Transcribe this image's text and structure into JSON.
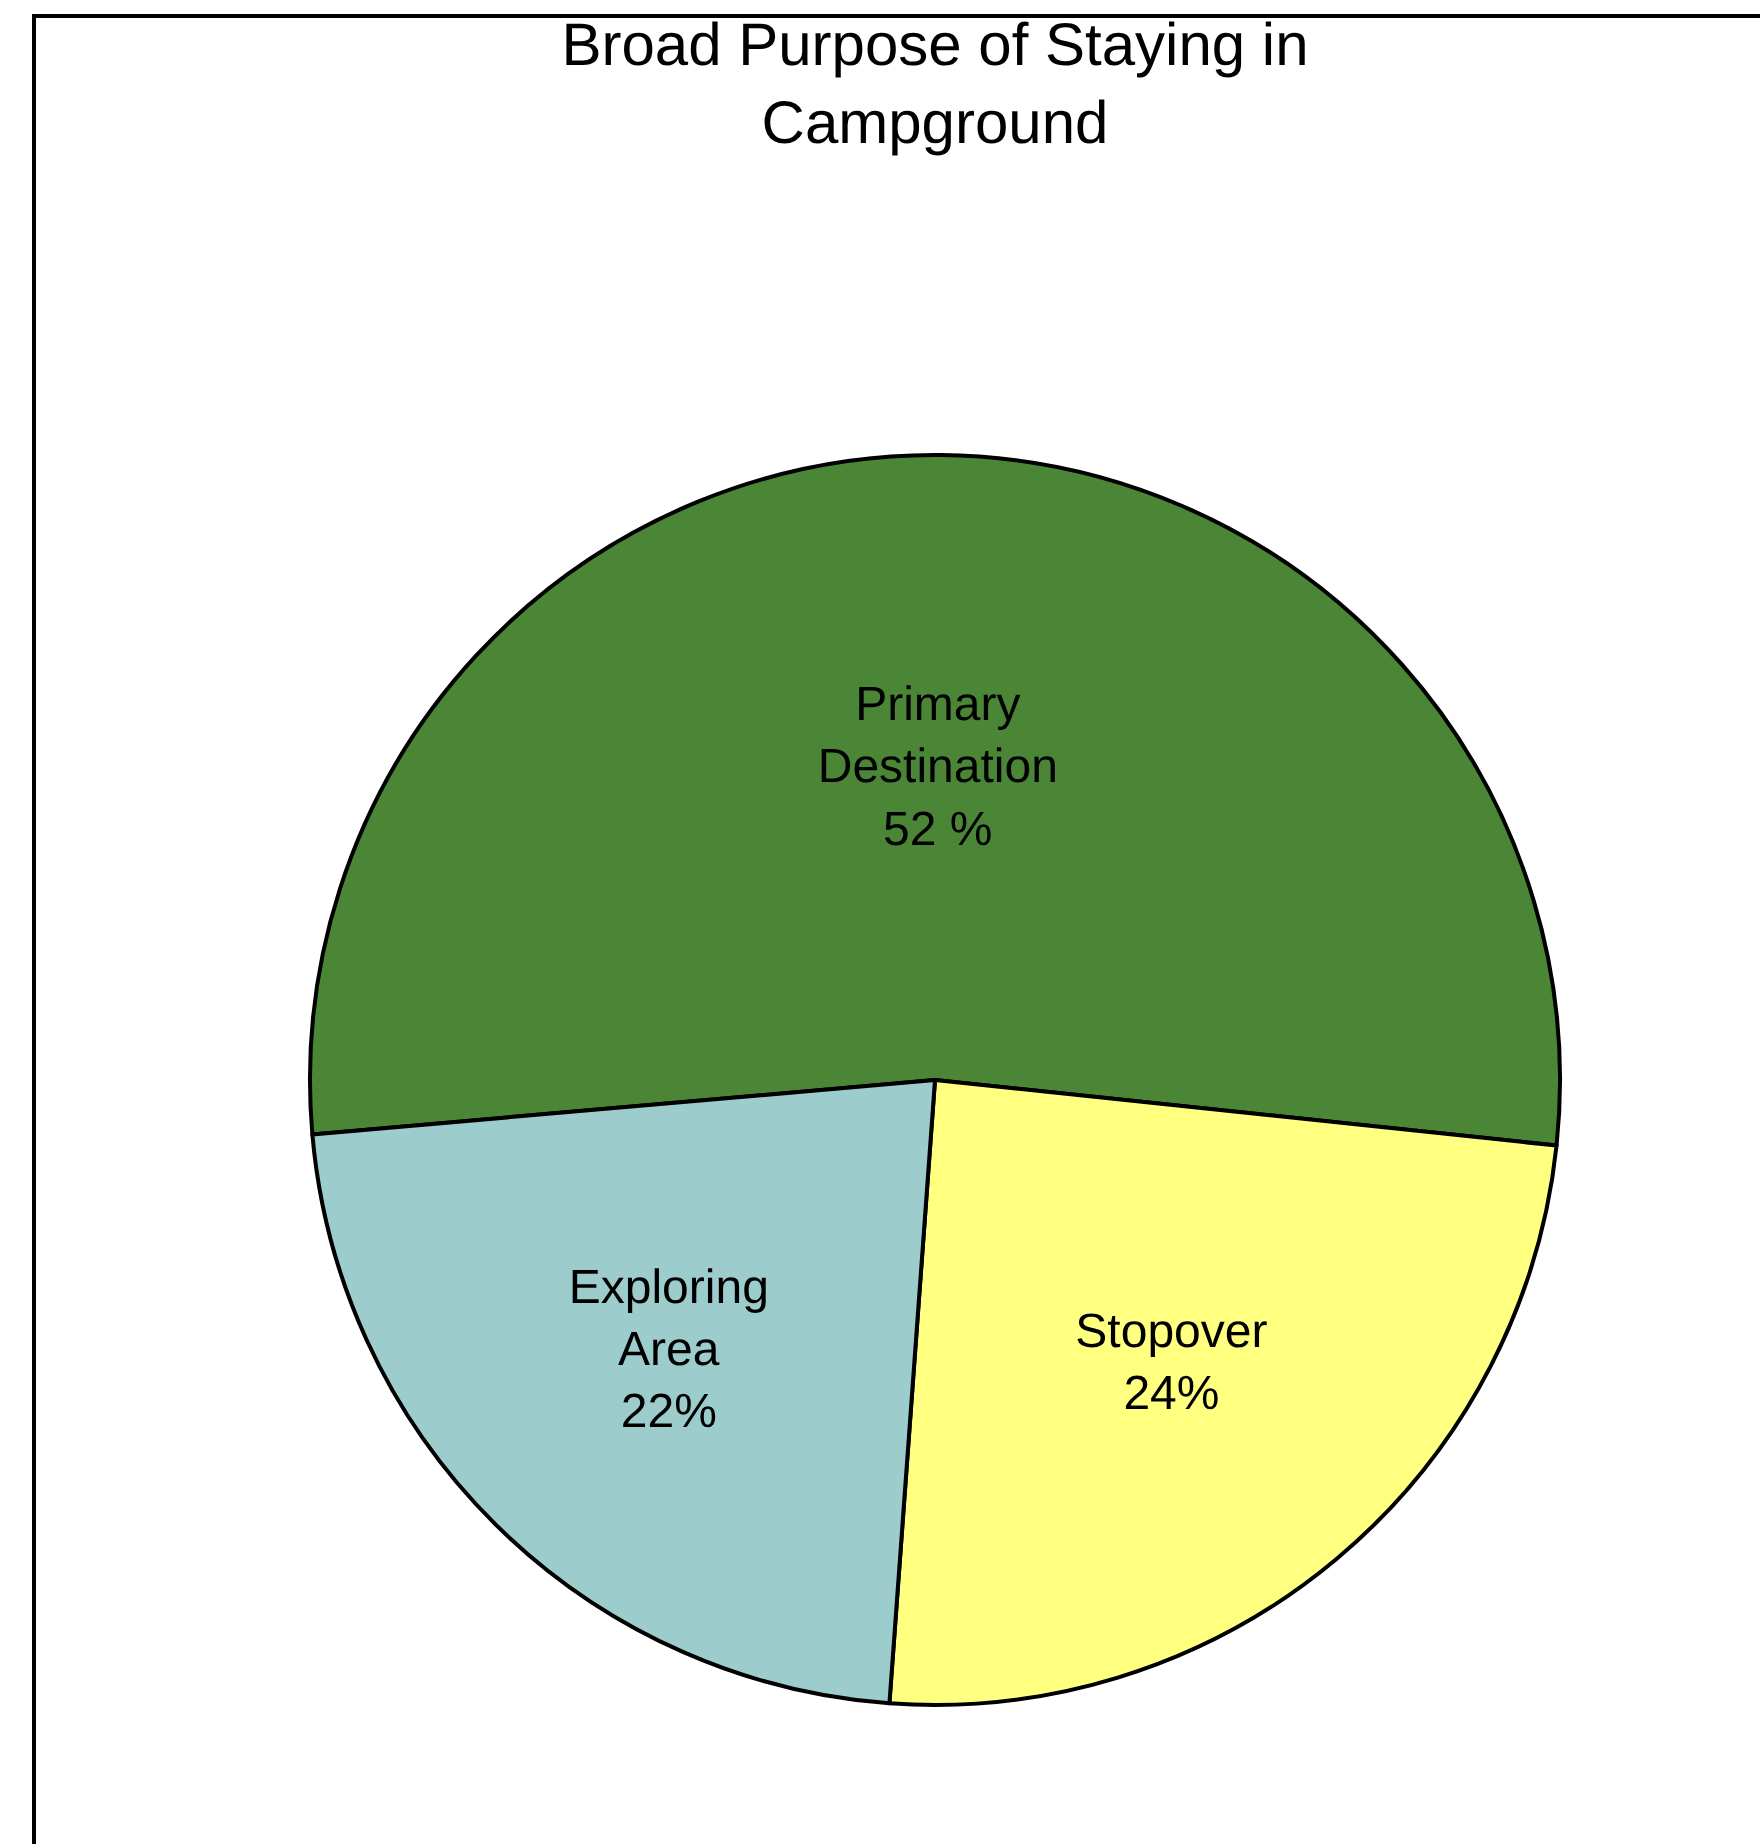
{
  "chart_data": {
    "type": "pie",
    "title": "Broad Purpose of Staying in Campground",
    "categories": [
      "Primary Destination",
      "Stopover",
      "Exploring Area"
    ],
    "values": [
      52,
      24,
      22
    ],
    "value_labels": [
      "52 %",
      "24%",
      "22%"
    ],
    "colors": [
      "#4a8636",
      "#ffff80",
      "#9ccccc"
    ],
    "legend": false
  }
}
